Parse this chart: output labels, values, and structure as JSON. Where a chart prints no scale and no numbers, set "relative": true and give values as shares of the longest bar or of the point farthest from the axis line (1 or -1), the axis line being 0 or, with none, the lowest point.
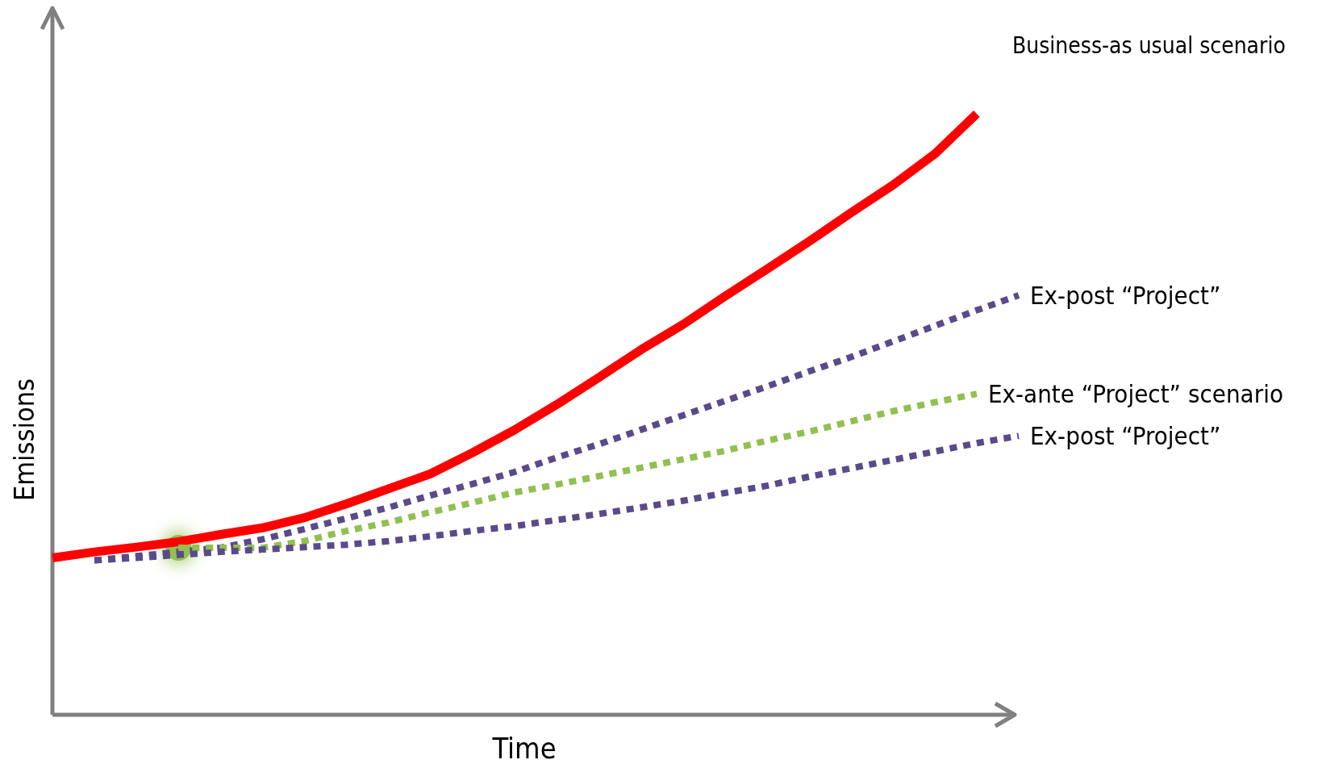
{
  "chart_data": {
    "type": "line",
    "relative": true,
    "xlabel": "Time",
    "ylabel": "Emissions",
    "legend": false,
    "marker": "none",
    "categories": [
      null,
      null,
      null,
      null,
      null,
      null,
      null,
      null,
      null,
      null,
      null,
      null,
      null,
      null,
      null,
      null,
      null,
      null,
      null,
      null,
      null,
      null,
      null,
      null
    ],
    "series": [
      {
        "name": "Business-as usual scenario",
        "color": "#ff0000",
        "line_style": "solid",
        "values": [
          0.261,
          0.271,
          0.279,
          0.288,
          0.3,
          0.311,
          0.328,
          0.351,
          0.376,
          0.401,
          0.436,
          0.474,
          0.516,
          0.561,
          0.607,
          0.649,
          0.696,
          0.741,
          0.787,
          0.835,
          0.881,
          0.933,
          1,
          null
        ]
      },
      {
        "name": "Ex-post “Project”",
        "color": "#5b4a8a",
        "line_style": "dotted",
        "values": [
          null,
          0.257,
          0.264,
          0.271,
          0.278,
          0.292,
          0.309,
          0.327,
          0.345,
          0.365,
          0.384,
          0.404,
          0.428,
          0.45,
          0.474,
          0.498,
          0.522,
          0.546,
          0.571,
          0.595,
          0.621,
          0.647,
          0.673,
          0.698
        ]
      },
      {
        "name": "Ex-ante “Project” scenario",
        "color": "#92c050",
        "line_style": "dotted",
        "values": [
          null,
          null,
          null,
          0.278,
          0.278,
          0.278,
          0.289,
          0.306,
          0.32,
          0.337,
          0.353,
          0.37,
          0.383,
          0.397,
          0.411,
          0.425,
          0.439,
          0.456,
          0.471,
          0.488,
          0.505,
          0.52,
          0.534,
          null
        ]
      },
      {
        "name": "Ex-post “Project”",
        "color": "#5b4a8a",
        "line_style": "dotted",
        "values": [
          null,
          0.257,
          0.261,
          0.266,
          0.271,
          0.275,
          0.279,
          0.283,
          0.289,
          0.297,
          0.306,
          0.314,
          0.324,
          0.334,
          0.345,
          0.356,
          0.369,
          0.381,
          0.396,
          0.41,
          0.424,
          0.438,
          0.452,
          0.464
        ]
      }
    ]
  }
}
